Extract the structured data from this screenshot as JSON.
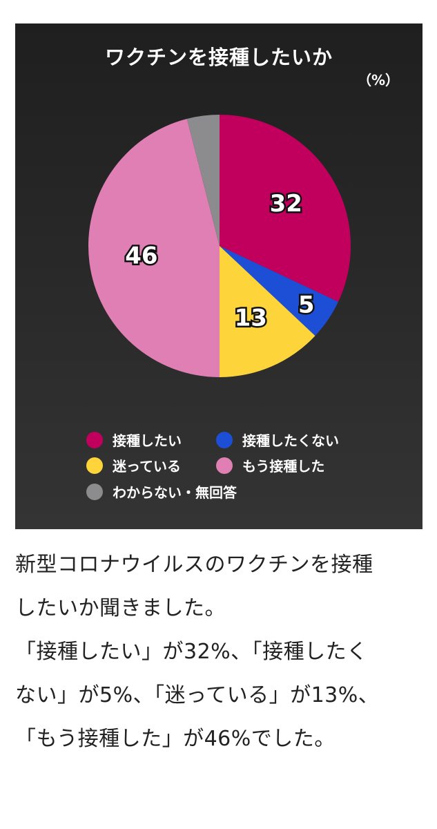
{
  "chart_data": {
    "type": "pie",
    "title": "ワクチンを接種したいか",
    "unit": "（%）",
    "slices": [
      {
        "label": "接種したい",
        "value": 32,
        "value_label": "32",
        "color": "#c1005e"
      },
      {
        "label": "接種したくない",
        "value": 5,
        "value_label": "5",
        "color": "#1c4fd6"
      },
      {
        "label": "迷っている",
        "value": 13,
        "value_label": "13",
        "color": "#fdd53a"
      },
      {
        "label": "もう接種した",
        "value": 46,
        "value_label": "46",
        "color": "#e07fb3"
      },
      {
        "label": "わからない・無回答",
        "value": 4,
        "value_label": "",
        "color": "#8c8b8e"
      }
    ],
    "legend_position": "bottom"
  },
  "caption": {
    "lines": [
      "新型コロナウイルスのワクチンを接種",
      "したいか聞きました。",
      "「接種したい」が32%、「接種したく",
      "ない」が5%、「迷っている」が13%、",
      "「もう接種した」が46%でした。"
    ]
  }
}
